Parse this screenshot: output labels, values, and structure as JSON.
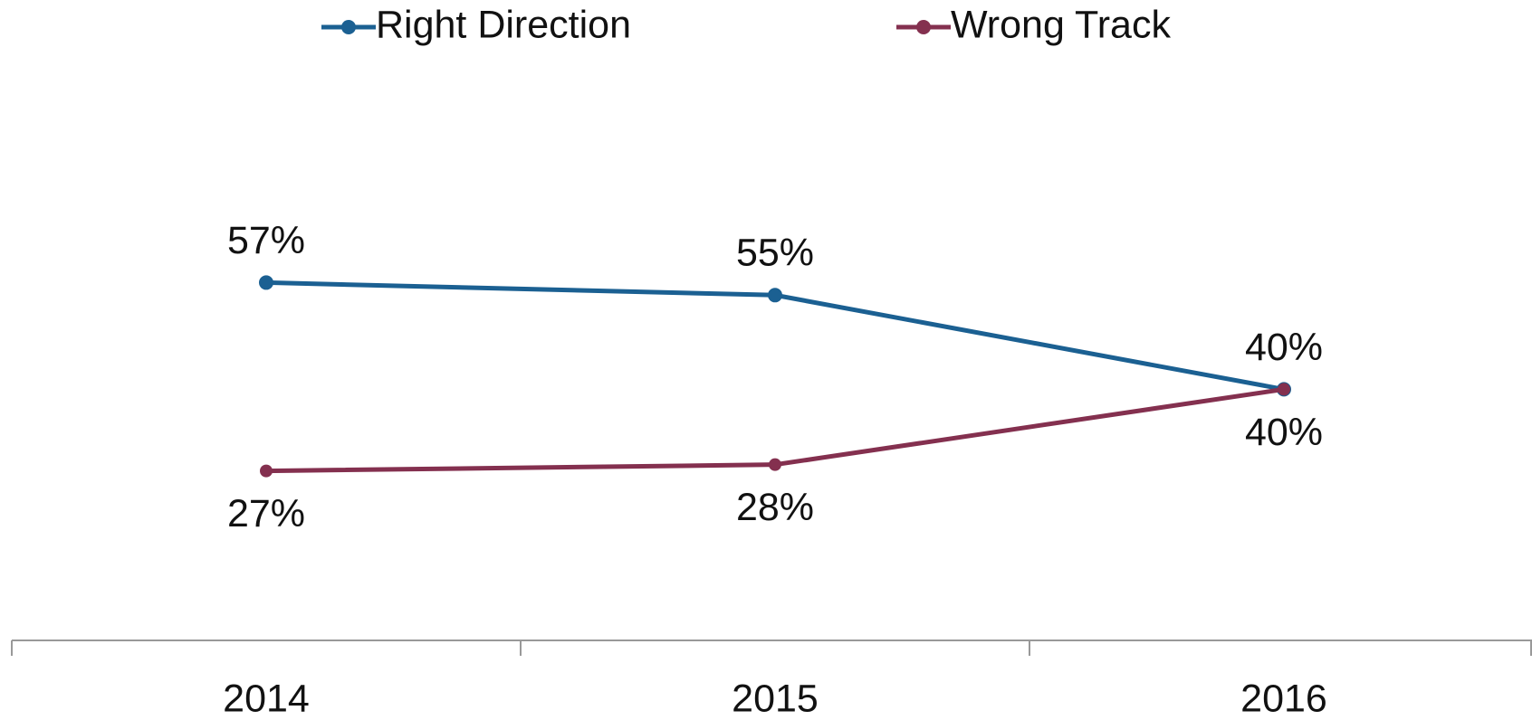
{
  "chart_data": {
    "type": "line",
    "categories": [
      "2014",
      "2015",
      "2016"
    ],
    "series": [
      {
        "name": "Right Direction",
        "color": "#1b6092",
        "values": [
          57,
          55,
          40
        ],
        "value_labels": [
          "57%",
          "55%",
          "40%"
        ]
      },
      {
        "name": "Wrong Track",
        "color": "#84304f",
        "values": [
          27,
          28,
          40
        ],
        "value_labels": [
          "27%",
          "28%",
          "40%"
        ]
      }
    ],
    "ylim": [
      0,
      100
    ],
    "legend": "top"
  }
}
